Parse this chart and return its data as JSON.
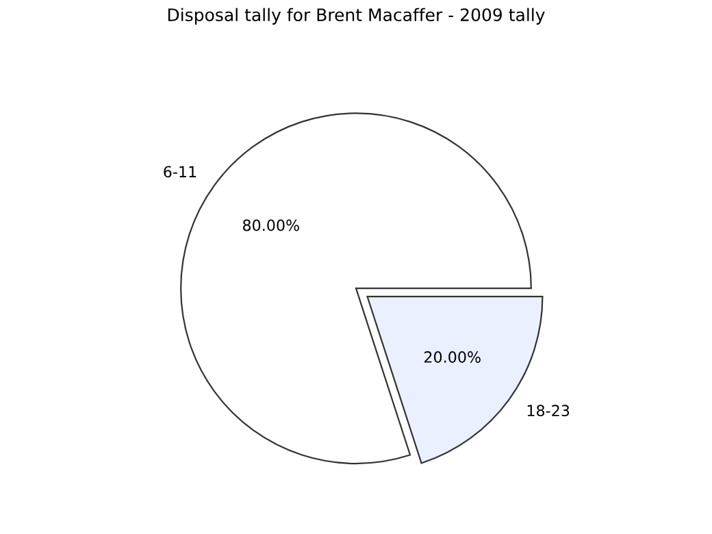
{
  "chart_data": {
    "type": "pie",
    "title": "Disposal tally for Brent Macaffer - 2009 tally",
    "categories": [
      "6-11",
      "18-23"
    ],
    "values": [
      80,
      20
    ],
    "value_labels": [
      "80.00%",
      "20.00%"
    ],
    "colors": [
      "#ffffff",
      "#eaf0fe"
    ],
    "legend": false
  }
}
